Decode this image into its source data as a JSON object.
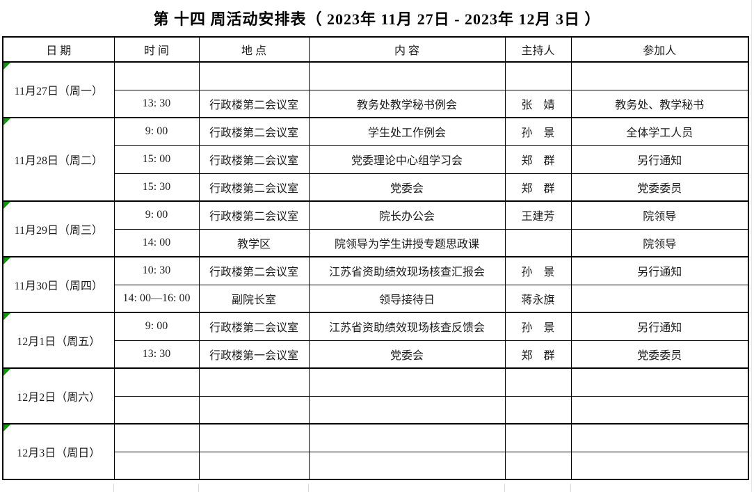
{
  "title": "第 十四 周活动安排表（ 2023年 11月 27日 - 2023年 12月 3日 ）",
  "colors": {
    "border": "#000000",
    "text": "#1c1c1c",
    "flag_triangle": "#149414",
    "gridline": "#d9d9d9"
  },
  "table": {
    "columns": [
      "日 期",
      "时 间",
      "地 点",
      "内 容",
      "主持人",
      "参加人"
    ],
    "groups": [
      {
        "date": "11月27日（周一）",
        "rows": [
          {
            "time": "",
            "location": "",
            "content": "",
            "host": "",
            "participants": ""
          },
          {
            "time": "13: 30",
            "location": "行政楼第二会议室",
            "content": "教务处教学秘书例会",
            "host": "张　婧",
            "participants": "教务处、教学秘书"
          }
        ]
      },
      {
        "date": "11月28日（周二）",
        "rows": [
          {
            "time": "9: 00",
            "location": "行政楼第二会议室",
            "content": "学生处工作例会",
            "host": "孙　景",
            "participants": "全体学工人员"
          },
          {
            "time": "15: 00",
            "location": "行政楼第二会议室",
            "content": "党委理论中心组学习会",
            "host": "郑　群",
            "participants": "另行通知"
          },
          {
            "time": "15: 30",
            "location": "行政楼第二会议室",
            "content": "党委会",
            "host": "郑　群",
            "participants": "党委委员"
          }
        ]
      },
      {
        "date": "11月29日（周三）",
        "rows": [
          {
            "time": "9: 00",
            "location": "行政楼第二会议室",
            "content": "院长办公会",
            "host": "王建芳",
            "participants": "院领导"
          },
          {
            "time": "14: 00",
            "location": "教学区",
            "content": "院领导为学生讲授专题思政课",
            "host": "",
            "participants": "院领导"
          }
        ]
      },
      {
        "date": "11月30日（周四）",
        "rows": [
          {
            "time": "10: 30",
            "location": "行政楼第二会议室",
            "content": "江苏省资助绩效现场核查汇报会",
            "host": "孙　景",
            "participants": "另行通知"
          },
          {
            "time": "14: 00—16: 00",
            "location": "副院长室",
            "content": "领导接待日",
            "host": "蒋永旗",
            "participants": ""
          }
        ]
      },
      {
        "date": "12月1日（周五）",
        "rows": [
          {
            "time": "9: 00",
            "location": "行政楼第二会议室",
            "content": "江苏省资助绩效现场核查反馈会",
            "host": "孙　景",
            "participants": "另行通知"
          },
          {
            "time": "13: 30",
            "location": "行政楼第一会议室",
            "content": "党委会",
            "host": "郑　群",
            "participants": "党委委员"
          }
        ]
      },
      {
        "date": "12月2日（周六）",
        "rows": [
          {
            "time": "",
            "location": "",
            "content": "",
            "host": "",
            "participants": ""
          },
          {
            "time": "",
            "location": "",
            "content": "",
            "host": "",
            "participants": ""
          }
        ]
      },
      {
        "date": "12月3日（周日）",
        "rows": [
          {
            "time": "",
            "location": "",
            "content": "",
            "host": "",
            "participants": ""
          },
          {
            "time": "",
            "location": "",
            "content": "",
            "host": "",
            "participants": ""
          }
        ]
      }
    ]
  }
}
